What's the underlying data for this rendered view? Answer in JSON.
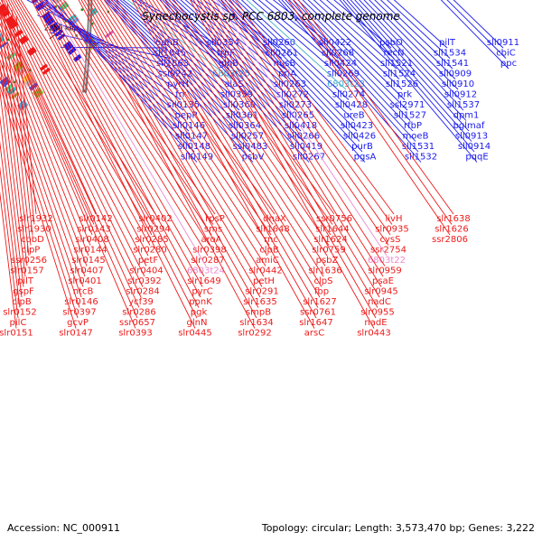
{
  "title": "Synechocystis sp. PCC 6803, complete genome",
  "footer": {
    "accession": "Accession: NC_000911",
    "summary": "Topology: circular; Length: 3,573,470 bp; Genes: 3,222"
  },
  "colors": {
    "forward": "#1a1aee",
    "reverse": "#ee1a1a",
    "trna": "#44aacc",
    "misc": "#ee88cc",
    "backbone": "#777777"
  },
  "ticks": [
    {
      "label": "2250 kbp",
      "pos": 2250
    },
    {
      "label": "2200 kbp",
      "pos": 2200
    },
    {
      "label": "2150 kbp",
      "pos": 2150
    },
    {
      "label": "2100 kbp",
      "pos": 2100
    },
    {
      "label": "2050 kbp",
      "pos": 2050
    },
    {
      "label": "2000 kbp",
      "pos": 2000
    }
  ],
  "forward_genes": [
    {
      "label": "odhB",
      "pos": 2255
    },
    {
      "label": "sll1845",
      "pos": 2248
    },
    {
      "label": "sll1863",
      "pos": 2240
    },
    {
      "label": "ssl0242",
      "pos": 2233
    },
    {
      "label": "pyrH",
      "pos": 2230
    },
    {
      "label": "frr",
      "pos": 2226
    },
    {
      "label": "sll0135",
      "pos": 2223
    },
    {
      "label": "pepP",
      "pos": 2219
    },
    {
      "label": "sll0146",
      "pos": 2215
    },
    {
      "label": "sll0147",
      "pos": 2212
    },
    {
      "label": "sll0148",
      "pos": 2208
    },
    {
      "label": "sll0149",
      "pos": 2195
    },
    {
      "label": "sll0354",
      "pos": 2190
    },
    {
      "label": "trpF",
      "pos": 2182
    },
    {
      "label": "glnB",
      "pos": 2178
    },
    {
      "label": "6803t25",
      "pos": 2175,
      "kind": "trna"
    },
    {
      "label": "alaS",
      "pos": 2172
    },
    {
      "label": "sll0359",
      "pos": 2168
    },
    {
      "label": "sll0360",
      "pos": 2165
    },
    {
      "label": "sll0361",
      "pos": 2162
    },
    {
      "label": "sll0364",
      "pos": 2159
    },
    {
      "label": "sll0257",
      "pos": 2156
    },
    {
      "label": "ssl0483",
      "pos": 2153
    },
    {
      "label": "psbV",
      "pos": 2150
    },
    {
      "label": "sll0260",
      "pos": 2146
    },
    {
      "label": "sll0261",
      "pos": 2143
    },
    {
      "label": "nusB",
      "pos": 2140
    },
    {
      "label": "priA",
      "pos": 2137
    },
    {
      "label": "sll0263",
      "pos": 2134
    },
    {
      "label": "sll0272",
      "pos": 2131
    },
    {
      "label": "sll0273",
      "pos": 2128
    },
    {
      "label": "sll0265",
      "pos": 2125
    },
    {
      "label": "sll0418",
      "pos": 2122
    },
    {
      "label": "sll0266",
      "pos": 2119
    },
    {
      "label": "sll0419",
      "pos": 2116
    },
    {
      "label": "sll0267",
      "pos": 2113
    },
    {
      "label": "sll0422",
      "pos": 2110
    },
    {
      "label": "sll0268",
      "pos": 2107
    },
    {
      "label": "sll0424",
      "pos": 2104
    },
    {
      "label": "sll0269",
      "pos": 2101
    },
    {
      "label": "6803t23",
      "pos": 2098,
      "kind": "trna"
    },
    {
      "label": "sll0274",
      "pos": 2095
    },
    {
      "label": "sll0428",
      "pos": 2092
    },
    {
      "label": "ureB",
      "pos": 2089
    },
    {
      "label": "sll0423",
      "pos": 2086
    },
    {
      "label": "sll0426",
      "pos": 2083
    },
    {
      "label": "purB",
      "pos": 2080
    },
    {
      "label": "pgsA",
      "pos": 2077
    },
    {
      "label": "psbO",
      "pos": 2074
    },
    {
      "label": "recN",
      "pos": 2071
    },
    {
      "label": "sll1521",
      "pos": 2068
    },
    {
      "label": "sll1524",
      "pos": 2065
    },
    {
      "label": "sll1526",
      "pos": 2062
    },
    {
      "label": "prk",
      "pos": 2059
    },
    {
      "label": "ssl2971",
      "pos": 2056
    },
    {
      "label": "sll1527",
      "pos": 2053
    },
    {
      "label": "rfbP",
      "pos": 2050
    },
    {
      "label": "moeB",
      "pos": 2047
    },
    {
      "label": "sll1531",
      "pos": 2044
    },
    {
      "label": "sll1532",
      "pos": 2041
    },
    {
      "label": "pilT",
      "pos": 2038
    },
    {
      "label": "sll1534",
      "pos": 2035
    },
    {
      "label": "sll1541",
      "pos": 2032
    },
    {
      "label": "sll0909",
      "pos": 2029
    },
    {
      "label": "sll0910",
      "pos": 2026
    },
    {
      "label": "sll0912",
      "pos": 2023
    },
    {
      "label": "sll1537",
      "pos": 2020
    },
    {
      "label": "dpm1",
      "pos": 2017
    },
    {
      "label": "bglmaf",
      "pos": 2014
    },
    {
      "label": "sll0913",
      "pos": 2011
    },
    {
      "label": "sll0914",
      "pos": 2008
    },
    {
      "label": "pqqE",
      "pos": 2005
    },
    {
      "label": "sll0911",
      "pos": 2002
    },
    {
      "label": "cbiC",
      "pos": 1999
    },
    {
      "label": "ppc",
      "pos": 1996
    }
  ],
  "reverse_genes": [
    {
      "label": "slr1932",
      "pos": 2236
    },
    {
      "label": "slr1930",
      "pos": 2233
    },
    {
      "label": "cobD",
      "pos": 2230
    },
    {
      "label": "clpP",
      "pos": 2226
    },
    {
      "label": "ssr0256",
      "pos": 2223
    },
    {
      "label": "slr0157",
      "pos": 2220
    },
    {
      "label": "pilT",
      "pos": 2217
    },
    {
      "label": "gspF",
      "pos": 2214
    },
    {
      "label": "clpB",
      "pos": 2211
    },
    {
      "label": "slr0152",
      "pos": 2208
    },
    {
      "label": "pilC",
      "pos": 2205
    },
    {
      "label": "slr0151",
      "pos": 2202
    },
    {
      "label": "slr0142",
      "pos": 2199
    },
    {
      "label": "slr0143",
      "pos": 2196
    },
    {
      "label": "slr0408",
      "pos": 2193
    },
    {
      "label": "slr0144",
      "pos": 2190
    },
    {
      "label": "slr0145",
      "pos": 2187
    },
    {
      "label": "slr0407",
      "pos": 2184
    },
    {
      "label": "slr0401",
      "pos": 2181
    },
    {
      "label": "ntcB",
      "pos": 2178
    },
    {
      "label": "slr0146",
      "pos": 2175
    },
    {
      "label": "slr0397",
      "pos": 2172
    },
    {
      "label": "gcvP",
      "pos": 2169
    },
    {
      "label": "slr0147",
      "pos": 2166
    },
    {
      "label": "slr0402",
      "pos": 2163
    },
    {
      "label": "slr0294",
      "pos": 2160
    },
    {
      "label": "slr0285",
      "pos": 2157
    },
    {
      "label": "slr0280",
      "pos": 2154
    },
    {
      "label": "petF",
      "pos": 2151
    },
    {
      "label": "slr0404",
      "pos": 2148
    },
    {
      "label": "slr0392",
      "pos": 2145
    },
    {
      "label": "slr0284",
      "pos": 2142
    },
    {
      "label": "ycf39",
      "pos": 2139
    },
    {
      "label": "slr0286",
      "pos": 2136
    },
    {
      "label": "ssr0657",
      "pos": 2133
    },
    {
      "label": "slr0393",
      "pos": 2130
    },
    {
      "label": "rpsP",
      "pos": 2127
    },
    {
      "label": "sms",
      "pos": 2124
    },
    {
      "label": "aroA",
      "pos": 2121
    },
    {
      "label": "slr0398",
      "pos": 2118
    },
    {
      "label": "slr0287",
      "pos": 2115
    },
    {
      "label": "6803t24",
      "pos": 2112,
      "kind": "misc"
    },
    {
      "label": "slr1649",
      "pos": 2109
    },
    {
      "label": "pyrC",
      "pos": 2106
    },
    {
      "label": "ppnK",
      "pos": 2103
    },
    {
      "label": "pgk",
      "pos": 2100
    },
    {
      "label": "glnN",
      "pos": 2097
    },
    {
      "label": "slr0445",
      "pos": 2094
    },
    {
      "label": "dnaX",
      "pos": 2091
    },
    {
      "label": "slr1648",
      "pos": 2088
    },
    {
      "label": "rnc",
      "pos": 2085
    },
    {
      "label": "clpB",
      "pos": 2082
    },
    {
      "label": "amiC",
      "pos": 2079
    },
    {
      "label": "slr0442",
      "pos": 2076
    },
    {
      "label": "petH",
      "pos": 2073
    },
    {
      "label": "slr0291",
      "pos": 2070
    },
    {
      "label": "slr1635",
      "pos": 2067
    },
    {
      "label": "smpB",
      "pos": 2064
    },
    {
      "label": "slr1634",
      "pos": 2061
    },
    {
      "label": "slr0292",
      "pos": 2058
    },
    {
      "label": "ssr0756",
      "pos": 2055
    },
    {
      "label": "slr1644",
      "pos": 2052
    },
    {
      "label": "slr1624",
      "pos": 2049
    },
    {
      "label": "slr0759",
      "pos": 2046
    },
    {
      "label": "psbZ",
      "pos": 2043
    },
    {
      "label": "slr1636",
      "pos": 2040
    },
    {
      "label": "clpS",
      "pos": 2037
    },
    {
      "label": "fbp",
      "pos": 2034
    },
    {
      "label": "slr1627",
      "pos": 2031
    },
    {
      "label": "ssr0761",
      "pos": 2028
    },
    {
      "label": "slr1647",
      "pos": 2025
    },
    {
      "label": "arsC",
      "pos": 2022
    },
    {
      "label": "livH",
      "pos": 2019
    },
    {
      "label": "slr0935",
      "pos": 2016
    },
    {
      "label": "cysS",
      "pos": 2013
    },
    {
      "label": "ssr2754",
      "pos": 2010
    },
    {
      "label": "6803t22",
      "pos": 2007,
      "kind": "misc"
    },
    {
      "label": "slr0959",
      "pos": 2004
    },
    {
      "label": "psaE",
      "pos": 2001
    },
    {
      "label": "slr0945",
      "pos": 1998
    },
    {
      "label": "nadC",
      "pos": 1995
    },
    {
      "label": "slr0955",
      "pos": 1992
    },
    {
      "label": "nadE",
      "pos": 1989
    },
    {
      "label": "slr0443",
      "pos": 1986
    },
    {
      "label": "slr1638",
      "pos": 1983
    },
    {
      "label": "slr1626",
      "pos": 1980
    },
    {
      "label": "ssr2806",
      "pos": 1977
    }
  ]
}
